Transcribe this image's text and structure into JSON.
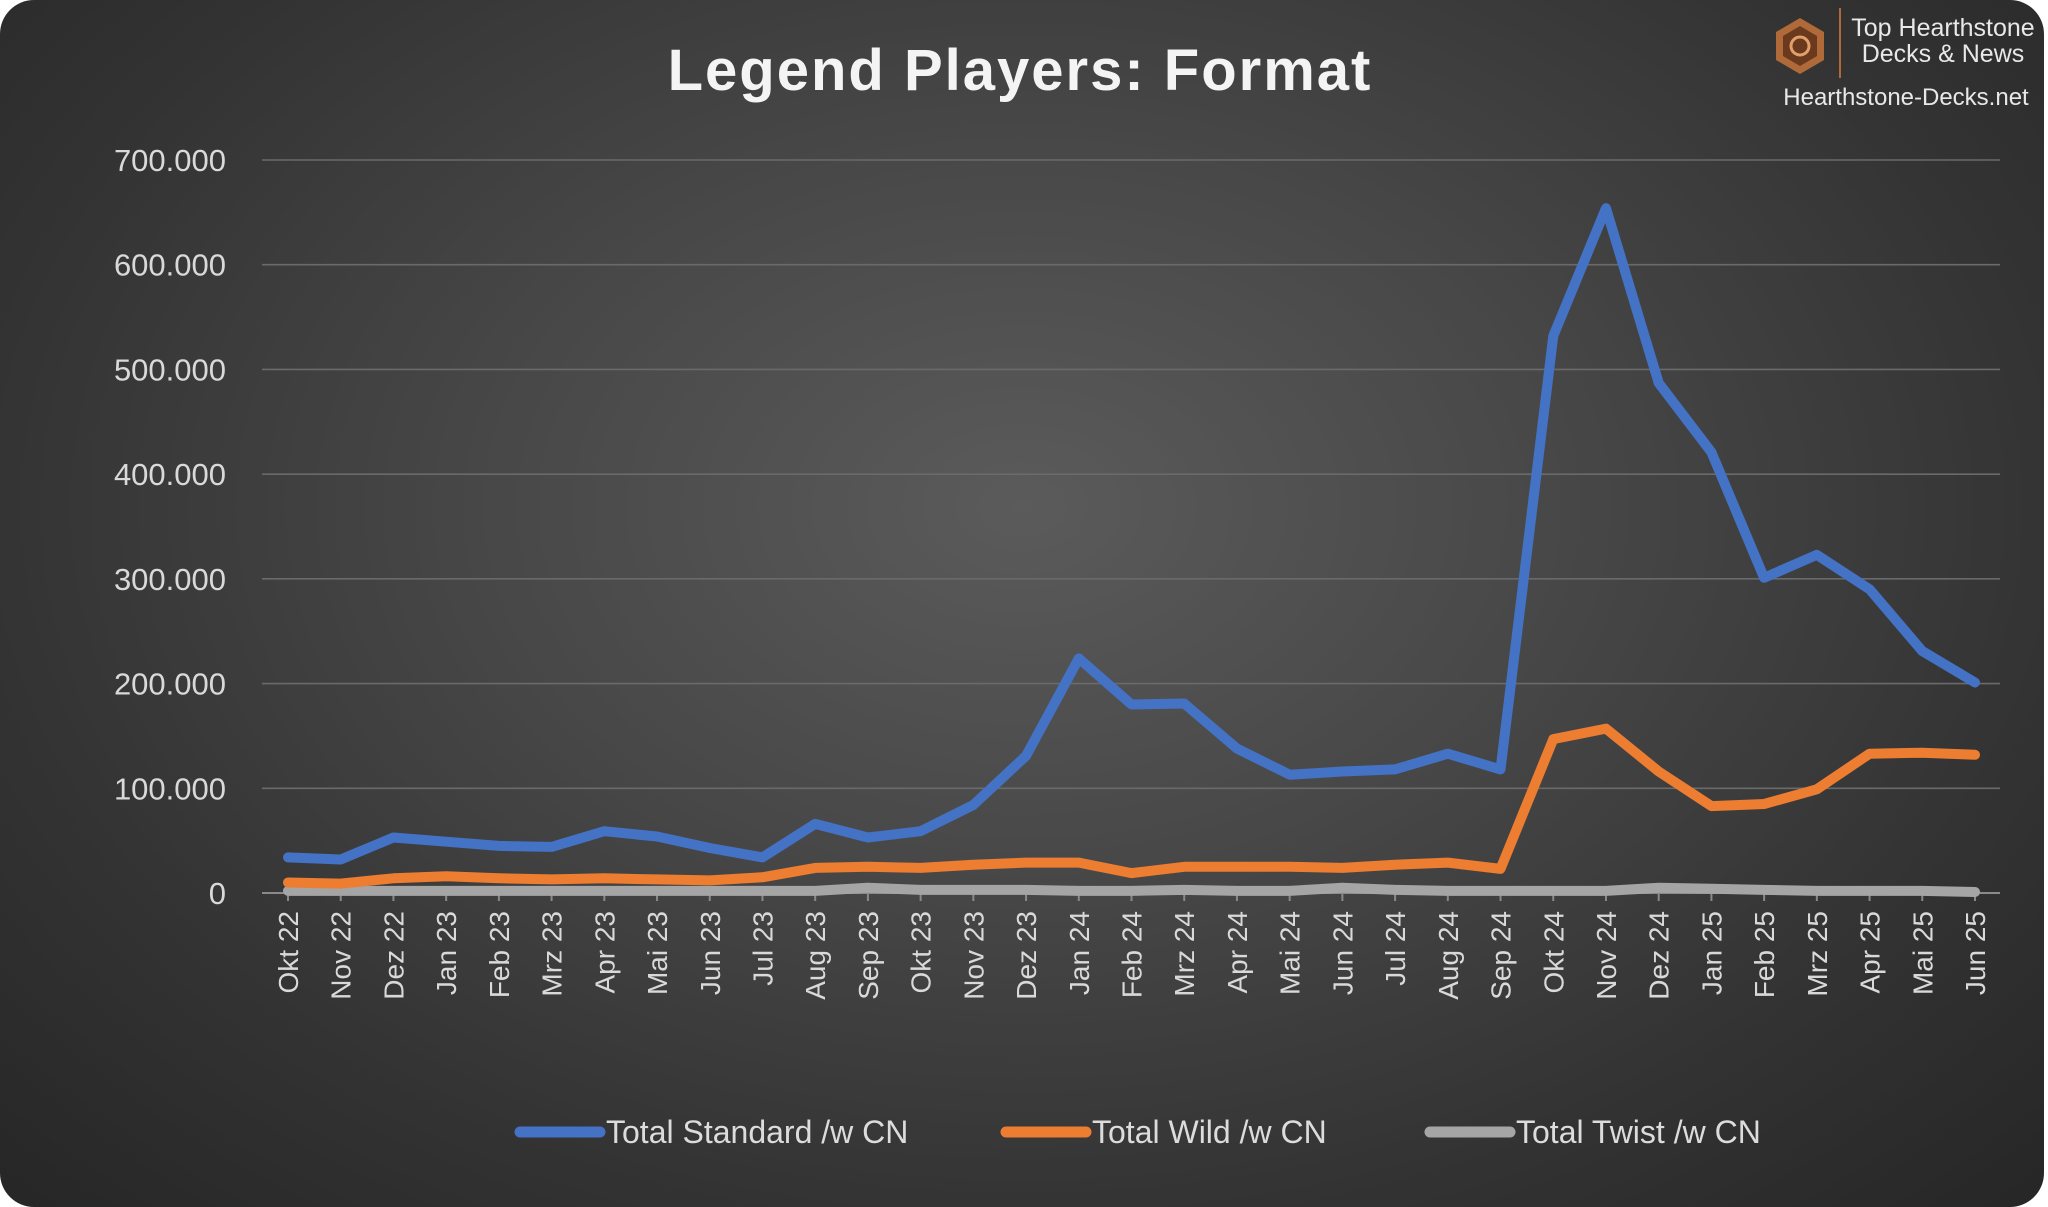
{
  "logo": {
    "line1": "Top Hearthstone",
    "line2": "Decks & News",
    "url": "Hearthstone-Decks.net"
  },
  "chart_data": {
    "type": "line",
    "title": "Legend Players: Format",
    "xlabel": "",
    "ylabel": "",
    "ylim": [
      0,
      700000
    ],
    "yticks": [
      0,
      100000,
      200000,
      300000,
      400000,
      500000,
      600000,
      700000
    ],
    "ytick_labels": [
      "0",
      "100.000",
      "200.000",
      "300.000",
      "400.000",
      "500.000",
      "600.000",
      "700.000"
    ],
    "grid": true,
    "legend_position": "bottom",
    "categories": [
      "Okt 22",
      "Nov 22",
      "Dez 22",
      "Jan 23",
      "Feb 23",
      "Mrz 23",
      "Apr 23",
      "Mai 23",
      "Jun 23",
      "Jul 23",
      "Aug 23",
      "Sep 23",
      "Okt 23",
      "Nov 23",
      "Dez 23",
      "Jan 24",
      "Feb 24",
      "Mrz 24",
      "Apr 24",
      "Mai 24",
      "Jun 24",
      "Jul 24",
      "Aug 24",
      "Sep 24",
      "Okt 24",
      "Nov 24",
      "Dez 24",
      "Jan 25",
      "Feb 25",
      "Mrz 25",
      "Apr 25",
      "Mai 25",
      "Jun 25"
    ],
    "series": [
      {
        "name": "Total Standard /w CN",
        "color": "#4472c4",
        "values": [
          34000,
          32000,
          53000,
          49000,
          45000,
          44000,
          59000,
          54000,
          43000,
          34000,
          66000,
          53000,
          59000,
          84000,
          131000,
          224000,
          180000,
          181000,
          138000,
          113000,
          116000,
          118000,
          133000,
          118000,
          532000,
          654000,
          487000,
          421000,
          301000,
          323000,
          290000,
          231000,
          201000
        ]
      },
      {
        "name": "Total Wild /w CN",
        "color": "#ed7d31",
        "values": [
          10000,
          9000,
          14000,
          16000,
          14000,
          13000,
          14000,
          13000,
          12000,
          15000,
          24000,
          25000,
          24000,
          27000,
          29000,
          29000,
          19000,
          25000,
          25000,
          25000,
          24000,
          27000,
          29000,
          23000,
          147000,
          157000,
          116000,
          83000,
          85000,
          99000,
          133000,
          134000,
          132000
        ]
      },
      {
        "name": "Total Twist /w CN",
        "color": "#a5a5a5",
        "values": [
          2000,
          2000,
          2000,
          2000,
          2000,
          2000,
          2000,
          2000,
          2000,
          2000,
          2000,
          5000,
          3000,
          3000,
          3000,
          2000,
          2000,
          3000,
          2000,
          2000,
          5000,
          3000,
          2000,
          2000,
          2000,
          2000,
          5000,
          4000,
          3000,
          2000,
          2000,
          2000,
          1000
        ]
      }
    ]
  }
}
